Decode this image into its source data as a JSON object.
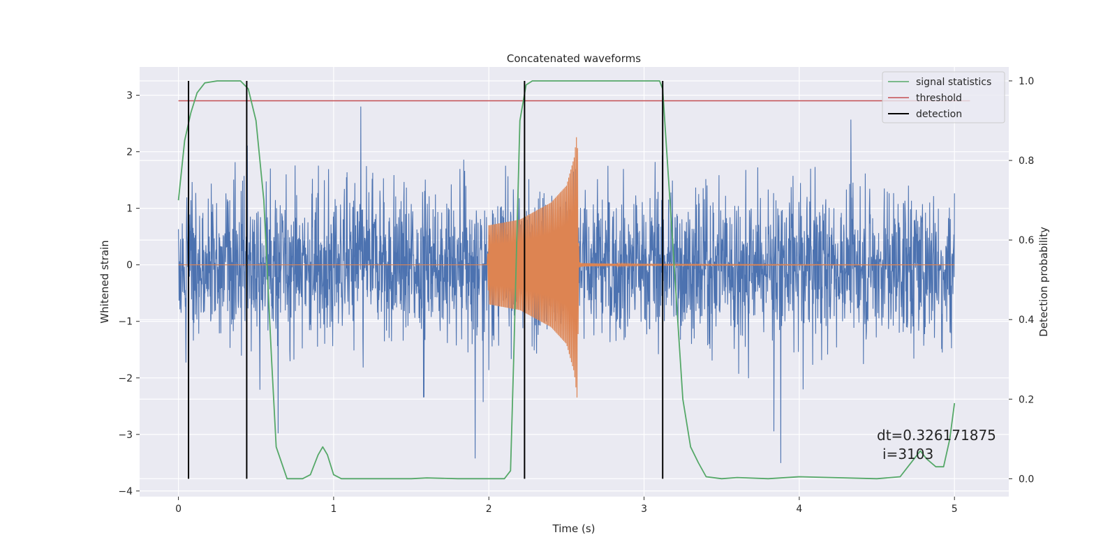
{
  "chart_data": {
    "type": "line",
    "title": "Concatenated waveforms",
    "xlabel": "Time (s)",
    "ylabel": "Whitened strain",
    "y2label": "Detection probability",
    "xlim": [
      -0.25,
      5.35
    ],
    "ylim": [
      -4.1,
      3.5
    ],
    "y2lim": [
      -0.045,
      1.035
    ],
    "xticks": [
      0,
      1,
      2,
      3,
      4,
      5
    ],
    "yticks": [
      -4,
      -3,
      -2,
      -1,
      0,
      1,
      2,
      3
    ],
    "y2ticks": [
      0.0,
      0.2,
      0.4,
      0.6,
      0.8,
      1.0
    ],
    "xtick_labels": [
      "0",
      "1",
      "2",
      "3",
      "4",
      "5"
    ],
    "ytick_labels": [
      "−4",
      "−3",
      "−2",
      "−1",
      "0",
      "1",
      "2",
      "3"
    ],
    "y2tick_labels": [
      "0.0",
      "0.2",
      "0.4",
      "0.6",
      "0.8",
      "1.0"
    ],
    "grid": true,
    "legend_position": "top-right",
    "legend": [
      "signal statistics",
      "threshold",
      "detection"
    ],
    "annotations": [
      "dt=0.326171875",
      "i=3103"
    ],
    "background_color": "#eaeaf2",
    "colors": {
      "noise": "#4c72b0",
      "injection": "#dd8452",
      "signal_statistics": "#55a868",
      "threshold": "#c44e52",
      "detection": "#000000"
    },
    "series": [
      {
        "name": "",
        "kind": "whitened strain (noise + injection)",
        "x_range": [
          0,
          5
        ],
        "amplitude_envelope": 2.5
      },
      {
        "name": "",
        "kind": "injected chirp waveform",
        "x": [
          0,
          1.99,
          2.0,
          2.2,
          2.4,
          2.5,
          2.55,
          2.57,
          2.58,
          2.6,
          3.0,
          5.0
        ],
        "envelope": [
          0,
          0,
          0.7,
          0.8,
          1.1,
          1.4,
          1.9,
          2.4,
          0.05,
          0.03,
          0.01,
          0
        ]
      },
      {
        "name": "signal statistics",
        "axis": "right",
        "x": [
          0,
          0.04,
          0.08,
          0.12,
          0.17,
          0.25,
          0.4,
          0.45,
          0.5,
          0.55,
          0.6,
          0.63,
          0.7,
          0.8,
          0.85,
          0.9,
          0.93,
          0.96,
          1.0,
          1.05,
          1.5,
          1.6,
          1.8,
          2.1,
          2.14,
          2.16,
          2.2,
          2.24,
          2.28,
          2.35,
          3.0,
          3.1,
          3.12,
          3.2,
          3.25,
          3.3,
          3.35,
          3.4,
          3.5,
          3.6,
          3.8,
          4.0,
          4.5,
          4.65,
          4.7,
          4.78,
          4.82,
          4.88,
          4.93,
          4.97,
          5.0
        ],
        "y": [
          0.7,
          0.85,
          0.92,
          0.97,
          0.995,
          1.0,
          1.0,
          0.98,
          0.9,
          0.7,
          0.3,
          0.08,
          0.0,
          0.0,
          0.01,
          0.06,
          0.08,
          0.06,
          0.01,
          0.0,
          0.0,
          0.002,
          0.0,
          0.0,
          0.02,
          0.3,
          0.9,
          0.99,
          1.0,
          1.0,
          1.0,
          1.0,
          0.98,
          0.5,
          0.2,
          0.08,
          0.04,
          0.005,
          0.0,
          0.003,
          0.0,
          0.005,
          0.0,
          0.005,
          0.03,
          0.07,
          0.05,
          0.03,
          0.03,
          0.1,
          0.19
        ]
      },
      {
        "name": "threshold",
        "axis": "right",
        "x": [
          0,
          5.1
        ],
        "y": [
          0.95,
          0.95
        ]
      },
      {
        "name": "detection",
        "kind": "vertical lines",
        "x": [
          0.065,
          0.44,
          2.23,
          3.12
        ],
        "y2_range": [
          0,
          1.0
        ]
      }
    ]
  }
}
